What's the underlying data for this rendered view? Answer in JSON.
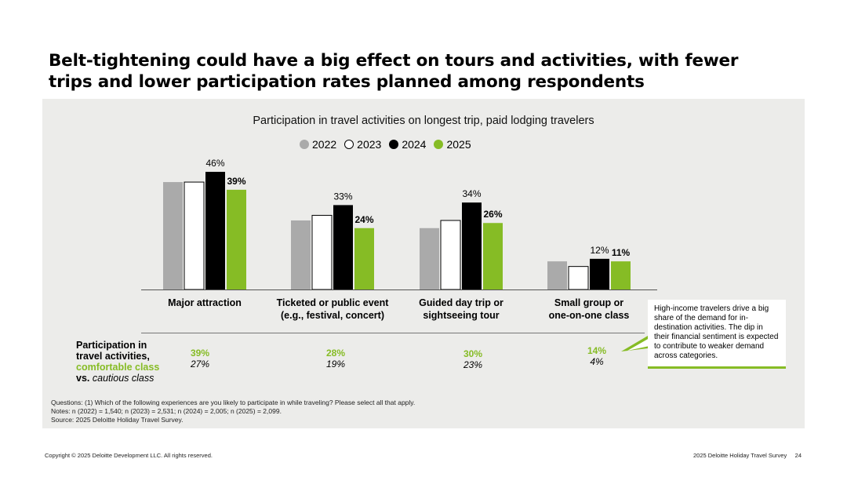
{
  "page": {
    "title": "Belt-tightening could have a big effect on tours and activities, with fewer trips and lower participation rates planned among respondents"
  },
  "chart_data": {
    "type": "bar",
    "title": "Participation in travel activities on longest trip, paid lodging travelers",
    "categories": [
      [
        "Major attraction"
      ],
      [
        "Ticketed or public event",
        "(e.g., festival, concert)"
      ],
      [
        "Guided day trip or",
        "sightseeing tour"
      ],
      [
        "Small group or",
        "one-on-one class"
      ]
    ],
    "series": [
      {
        "name": "2022",
        "values": [
          42,
          27,
          24,
          11
        ],
        "color": "#aaaaaa"
      },
      {
        "name": "2023",
        "values": [
          42,
          29,
          27,
          9
        ],
        "color": "#ffffff"
      },
      {
        "name": "2024",
        "values": [
          46,
          33,
          34,
          12
        ],
        "color": "#000000"
      },
      {
        "name": "2025",
        "values": [
          39,
          24,
          26,
          11
        ],
        "color": "#86bc25"
      }
    ],
    "data_labels": [
      [
        null,
        null,
        "46%",
        "39%"
      ],
      [
        null,
        null,
        "33%",
        "24%"
      ],
      [
        null,
        null,
        "34%",
        "26%"
      ],
      [
        null,
        null,
        "12%",
        "11%"
      ]
    ],
    "ylim": [
      0,
      50
    ],
    "legend_placement": "top-center",
    "grid": false
  },
  "comparison": {
    "label_line1": "Participation in",
    "label_line2": "travel activities,",
    "label_green": "comfortable class",
    "label_vs": "vs.",
    "label_cautious": "cautious class",
    "values": [
      {
        "comfortable": "39%",
        "cautious": "27%"
      },
      {
        "comfortable": "28%",
        "cautious": "19%"
      },
      {
        "comfortable": "30%",
        "cautious": "23%"
      },
      {
        "comfortable": "14%",
        "cautious": "4%"
      }
    ]
  },
  "callout": {
    "text": "High-income travelers drive a big share of the demand for in-destination activities. The dip in their financial sentiment is expected to contribute to weaker demand across categories."
  },
  "notes": {
    "questions": "Questions: (1) Which of the following experiences are you likely to participate in while traveling? Please select all that apply.",
    "n": "Notes: n (2022) = 1,540; n (2023) = 2,531; n (2024) = 2,005; n (2025) = 2,099.",
    "source": "Source: 2025 Deloitte Holiday Travel Survey."
  },
  "footer": {
    "copyright": "Copyright © 2025 Deloitte Development LLC. All rights reserved.",
    "report": "2025 Deloitte Holiday Travel Survey",
    "page_number": "24"
  },
  "colors": {
    "accent": "#86bc25",
    "panel": "#ececea"
  }
}
